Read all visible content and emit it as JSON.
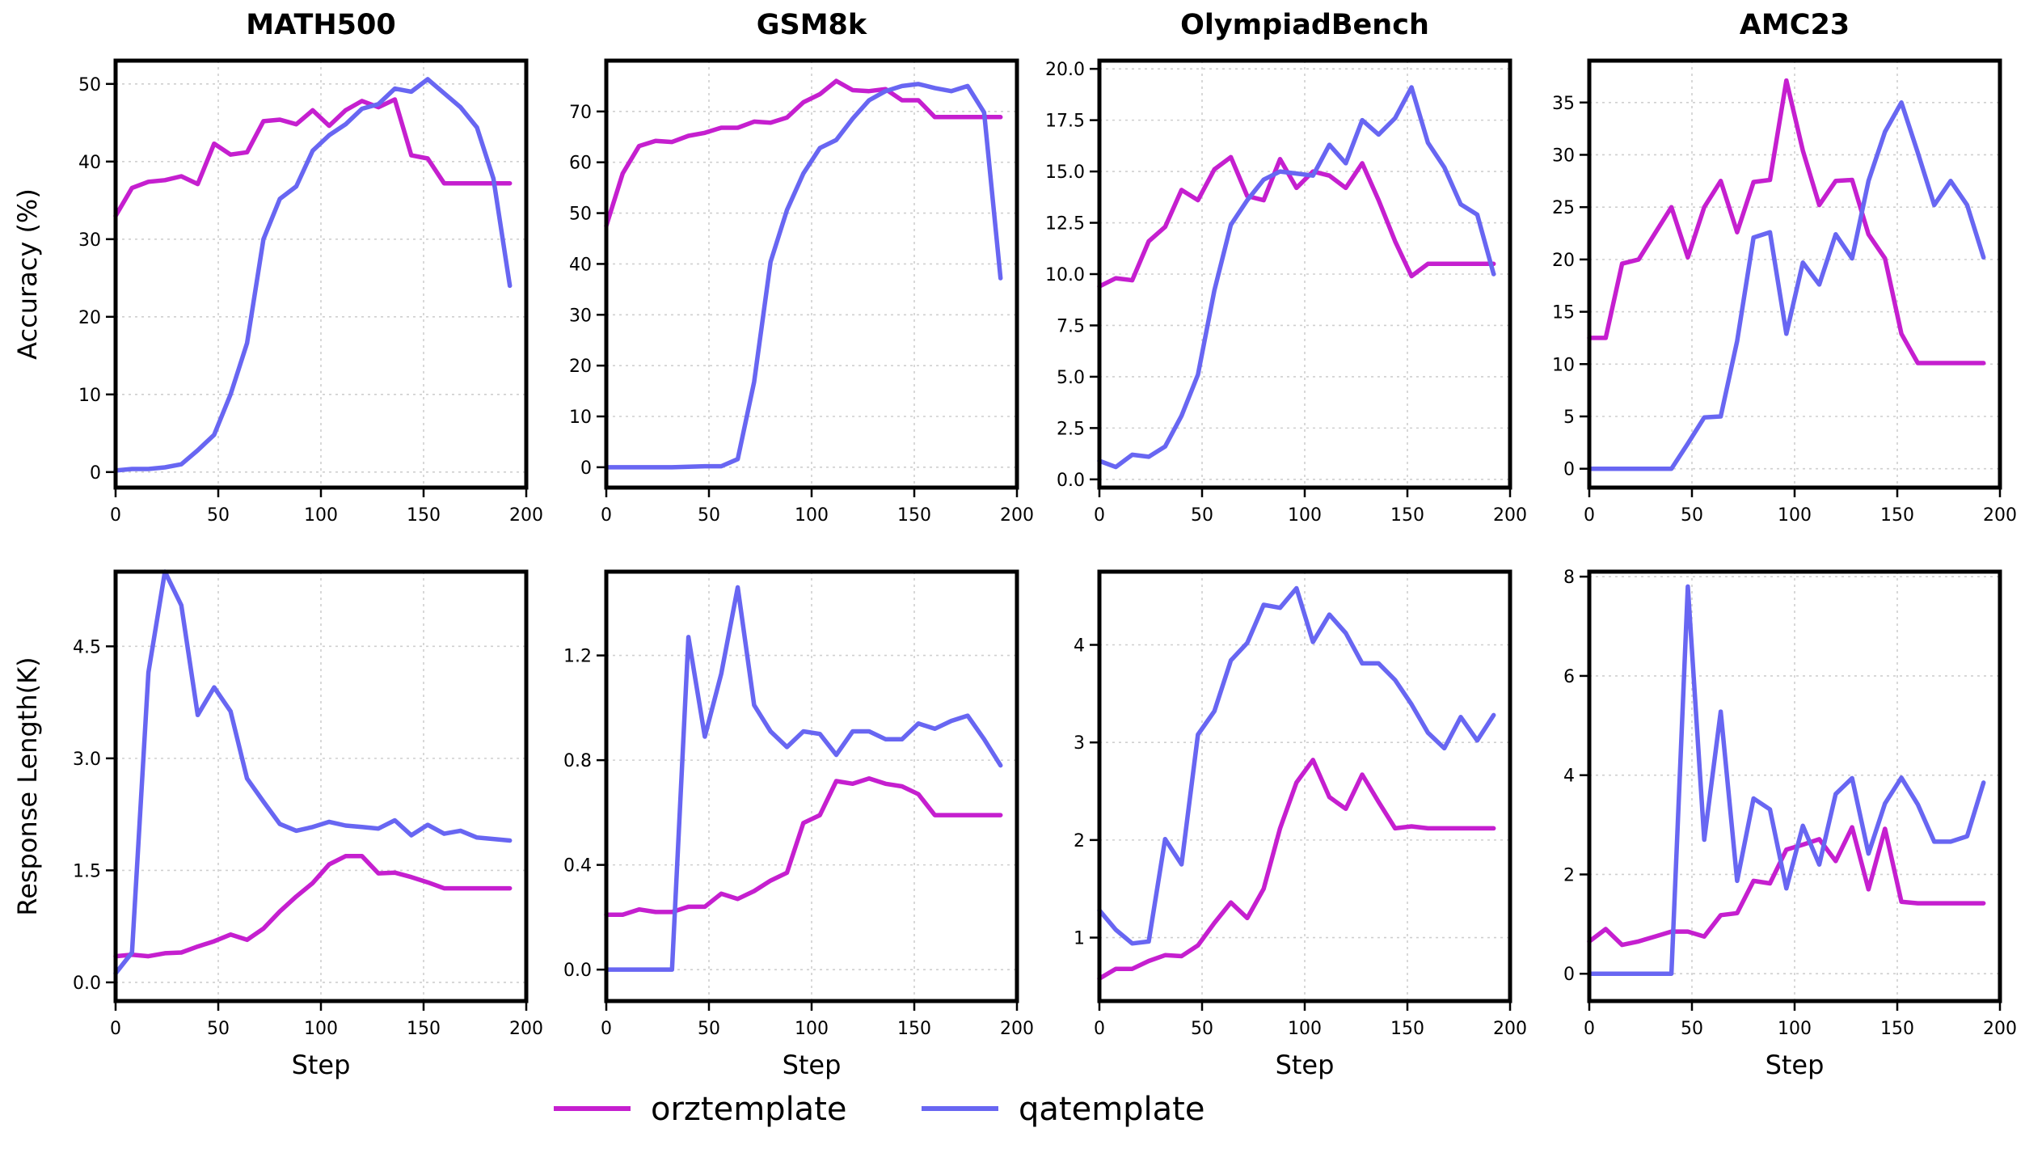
{
  "legend": {
    "items": [
      {
        "name": "orztemplate",
        "color": "#c51fcf"
      },
      {
        "name": "qatemplate",
        "color": "#6866f2"
      }
    ]
  },
  "chart_data": [
    {
      "type": "line",
      "title": "MATH500",
      "xlabel": "",
      "ylabel": "Accuracy (%)",
      "xlim": [
        0,
        200
      ],
      "ylim": [
        -2,
        53
      ],
      "xticks": [
        0,
        50,
        100,
        150,
        200
      ],
      "yticks": [
        0,
        10,
        20,
        30,
        40,
        50
      ],
      "ytick_labels": [
        "0",
        "10",
        "20",
        "30",
        "40",
        "50"
      ],
      "x": [
        0,
        8,
        16,
        24,
        32,
        40,
        48,
        56,
        64,
        72,
        80,
        88,
        96,
        104,
        112,
        120,
        128,
        136,
        144,
        152,
        160,
        168,
        176,
        184,
        192
      ],
      "series": [
        {
          "name": "orztemplate",
          "color": "#c51fcf",
          "values": [
            33,
            36.6,
            37.4,
            37.6,
            38.1,
            37.1,
            42.3,
            40.9,
            41.2,
            45.2,
            45.4,
            44.8,
            46.6,
            44.6,
            46.6,
            47.8,
            47,
            48,
            40.8,
            40.4,
            37.2,
            37.2,
            37.2,
            37.2,
            37.2
          ]
        },
        {
          "name": "qatemplate",
          "color": "#6866f2",
          "values": [
            0.2,
            0.4,
            0.4,
            0.6,
            1,
            2.8,
            4.8,
            10,
            16.6,
            30,
            35.2,
            36.8,
            41.4,
            43.4,
            44.8,
            46.8,
            47.4,
            49.4,
            49,
            50.6,
            48.8,
            47,
            44.4,
            37.8,
            24
          ]
        }
      ]
    },
    {
      "type": "line",
      "title": "GSM8k",
      "xlabel": "",
      "ylabel": "",
      "xlim": [
        0,
        200
      ],
      "ylim": [
        -4,
        80
      ],
      "xticks": [
        0,
        50,
        100,
        150,
        200
      ],
      "yticks": [
        0,
        10,
        20,
        30,
        40,
        50,
        60,
        70
      ],
      "ytick_labels": [
        "0",
        "10",
        "20",
        "30",
        "40",
        "50",
        "60",
        "70"
      ],
      "x": [
        0,
        8,
        16,
        24,
        32,
        40,
        48,
        56,
        64,
        72,
        80,
        88,
        96,
        104,
        112,
        120,
        128,
        136,
        144,
        152,
        160,
        168,
        176,
        184,
        192
      ],
      "series": [
        {
          "name": "orztemplate",
          "color": "#c51fcf",
          "values": [
            47.5,
            57.8,
            63.2,
            64.2,
            64,
            65.2,
            65.8,
            66.8,
            66.8,
            68,
            67.8,
            68.8,
            71.8,
            73.4,
            76,
            74.2,
            74,
            74.4,
            72.2,
            72.2,
            68.9,
            68.9,
            68.9,
            68.9,
            68.9
          ]
        },
        {
          "name": "qatemplate",
          "color": "#6866f2",
          "values": [
            0,
            0,
            0,
            0,
            0,
            0.1,
            0.2,
            0.2,
            1.6,
            16.8,
            40.4,
            50.6,
            57.8,
            62.8,
            64.4,
            68.6,
            72.2,
            74,
            75,
            75.4,
            74.6,
            74,
            75,
            69.8,
            37.2
          ]
        }
      ]
    },
    {
      "type": "line",
      "title": "OlympiadBench",
      "xlabel": "",
      "ylabel": "",
      "xlim": [
        0,
        200
      ],
      "ylim": [
        -0.4,
        20.4
      ],
      "xticks": [
        0,
        50,
        100,
        150,
        200
      ],
      "yticks": [
        0,
        2.5,
        5,
        7.5,
        10,
        12.5,
        15,
        17.5,
        20
      ],
      "ytick_labels": [
        "0.0",
        "2.5",
        "5.0",
        "7.5",
        "10.0",
        "12.5",
        "15.0",
        "17.5",
        "20.0"
      ],
      "x": [
        0,
        8,
        16,
        24,
        32,
        40,
        48,
        56,
        64,
        72,
        80,
        88,
        96,
        104,
        112,
        120,
        128,
        136,
        144,
        152,
        160,
        168,
        176,
        184,
        192
      ],
      "series": [
        {
          "name": "orztemplate",
          "color": "#c51fcf",
          "values": [
            9.4,
            9.8,
            9.7,
            11.6,
            12.3,
            14.1,
            13.6,
            15.1,
            15.7,
            13.8,
            13.6,
            15.6,
            14.2,
            15,
            14.8,
            14.2,
            15.4,
            13.6,
            11.6,
            9.9,
            10.5,
            10.5,
            10.5,
            10.5,
            10.5
          ]
        },
        {
          "name": "qatemplate",
          "color": "#6866f2",
          "values": [
            0.9,
            0.6,
            1.2,
            1.1,
            1.6,
            3.1,
            5.1,
            9.2,
            12.4,
            13.6,
            14.6,
            15,
            14.9,
            14.8,
            16.3,
            15.4,
            17.5,
            16.8,
            17.6,
            19.1,
            16.4,
            15.2,
            13.4,
            12.9,
            10
          ]
        }
      ]
    },
    {
      "type": "line",
      "title": "AMC23",
      "xlabel": "",
      "ylabel": "",
      "xlim": [
        0,
        200
      ],
      "ylim": [
        -1.8,
        39
      ],
      "xticks": [
        0,
        50,
        100,
        150,
        200
      ],
      "yticks": [
        0,
        5,
        10,
        15,
        20,
        25,
        30,
        35
      ],
      "ytick_labels": [
        "0",
        "5",
        "10",
        "15",
        "20",
        "25",
        "30",
        "35"
      ],
      "x": [
        0,
        8,
        16,
        24,
        32,
        40,
        48,
        56,
        64,
        72,
        80,
        88,
        96,
        104,
        112,
        120,
        128,
        136,
        144,
        152,
        160,
        168,
        176,
        184,
        192
      ],
      "series": [
        {
          "name": "orztemplate",
          "color": "#c51fcf",
          "values": [
            12.5,
            12.5,
            19.6,
            20,
            22.5,
            25,
            20.2,
            25,
            27.5,
            22.6,
            27.4,
            27.6,
            37.1,
            30.4,
            25.2,
            27.5,
            27.6,
            22.4,
            20.1,
            12.9,
            10.1,
            10.1,
            10.1,
            10.1,
            10.1
          ]
        },
        {
          "name": "qatemplate",
          "color": "#6866f2",
          "values": [
            0,
            0,
            0,
            0,
            0,
            0,
            2.4,
            4.9,
            5,
            12.2,
            22.1,
            22.6,
            12.9,
            19.7,
            17.6,
            22.4,
            20.1,
            27.5,
            32.2,
            35,
            30.2,
            25.2,
            27.5,
            25.2,
            20.2
          ]
        }
      ]
    },
    {
      "type": "line",
      "title": "",
      "xlabel": "Step",
      "ylabel": "Response Length(K)",
      "xlim": [
        0,
        200
      ],
      "ylim": [
        -0.25,
        5.5
      ],
      "xticks": [
        0,
        50,
        100,
        150,
        200
      ],
      "yticks": [
        0,
        1.5,
        3,
        4.5
      ],
      "ytick_labels": [
        "0.0",
        "1.5",
        "3.0",
        "4.5"
      ],
      "x": [
        0,
        8,
        16,
        24,
        32,
        40,
        48,
        56,
        64,
        72,
        80,
        88,
        96,
        104,
        112,
        120,
        128,
        136,
        144,
        152,
        160,
        168,
        176,
        184,
        192
      ],
      "series": [
        {
          "name": "orztemplate",
          "color": "#c51fcf",
          "values": [
            0.35,
            0.37,
            0.35,
            0.39,
            0.4,
            0.48,
            0.55,
            0.64,
            0.57,
            0.72,
            0.95,
            1.15,
            1.33,
            1.58,
            1.69,
            1.69,
            1.46,
            1.47,
            1.41,
            1.34,
            1.26,
            1.26,
            1.26,
            1.26,
            1.26
          ]
        },
        {
          "name": "qatemplate",
          "color": "#6866f2",
          "values": [
            0.12,
            0.4,
            4.15,
            5.5,
            5.05,
            3.58,
            3.95,
            3.63,
            2.73,
            2.42,
            2.12,
            2.03,
            2.08,
            2.15,
            2.1,
            2.08,
            2.06,
            2.17,
            1.97,
            2.11,
            1.99,
            2.03,
            1.94,
            1.92,
            1.9
          ]
        }
      ]
    },
    {
      "type": "line",
      "title": "",
      "xlabel": "Step",
      "ylabel": "",
      "xlim": [
        0,
        200
      ],
      "ylim": [
        -0.12,
        1.52
      ],
      "xticks": [
        0,
        50,
        100,
        150,
        200
      ],
      "yticks": [
        0,
        0.4,
        0.8,
        1.2
      ],
      "ytick_labels": [
        "0.0",
        "0.4",
        "0.8",
        "1.2"
      ],
      "x": [
        0,
        8,
        16,
        24,
        32,
        40,
        48,
        56,
        64,
        72,
        80,
        88,
        96,
        104,
        112,
        120,
        128,
        136,
        144,
        152,
        160,
        168,
        176,
        184,
        192
      ],
      "series": [
        {
          "name": "orztemplate",
          "color": "#c51fcf",
          "values": [
            0.21,
            0.21,
            0.23,
            0.22,
            0.22,
            0.24,
            0.24,
            0.29,
            0.27,
            0.3,
            0.34,
            0.37,
            0.56,
            0.59,
            0.72,
            0.71,
            0.73,
            0.71,
            0.7,
            0.67,
            0.59,
            0.59,
            0.59,
            0.59,
            0.59
          ]
        },
        {
          "name": "qatemplate",
          "color": "#6866f2",
          "values": [
            0,
            0,
            0,
            0,
            0,
            1.27,
            0.89,
            1.13,
            1.46,
            1.01,
            0.91,
            0.85,
            0.91,
            0.9,
            0.82,
            0.91,
            0.91,
            0.88,
            0.88,
            0.94,
            0.92,
            0.95,
            0.97,
            0.88,
            0.78
          ]
        }
      ]
    },
    {
      "type": "line",
      "title": "",
      "xlabel": "Step",
      "ylabel": "",
      "xlim": [
        0,
        200
      ],
      "ylim": [
        0.35,
        4.75
      ],
      "xticks": [
        0,
        50,
        100,
        150,
        200
      ],
      "yticks": [
        1,
        2,
        3,
        4
      ],
      "ytick_labels": [
        "1",
        "2",
        "3",
        "4"
      ],
      "x": [
        0,
        8,
        16,
        24,
        32,
        40,
        48,
        56,
        64,
        72,
        80,
        88,
        96,
        104,
        112,
        120,
        128,
        136,
        144,
        152,
        160,
        168,
        176,
        184,
        192
      ],
      "series": [
        {
          "name": "orztemplate",
          "color": "#c51fcf",
          "values": [
            0.58,
            0.68,
            0.68,
            0.76,
            0.82,
            0.81,
            0.92,
            1.15,
            1.36,
            1.2,
            1.5,
            2.12,
            2.59,
            2.82,
            2.44,
            2.32,
            2.67,
            2.39,
            2.12,
            2.14,
            2.12,
            2.12,
            2.12,
            2.12,
            2.12
          ]
        },
        {
          "name": "qatemplate",
          "color": "#6866f2",
          "values": [
            1.28,
            1.08,
            0.94,
            0.96,
            2.01,
            1.75,
            3.08,
            3.32,
            3.84,
            4.02,
            4.41,
            4.38,
            4.58,
            4.03,
            4.31,
            4.12,
            3.81,
            3.81,
            3.64,
            3.39,
            3.1,
            2.94,
            3.26,
            3.02,
            3.28
          ]
        }
      ]
    },
    {
      "type": "line",
      "title": "",
      "xlabel": "Step",
      "ylabel": "",
      "xlim": [
        0,
        200
      ],
      "ylim": [
        -0.55,
        8.1
      ],
      "xticks": [
        0,
        50,
        100,
        150,
        200
      ],
      "yticks": [
        0,
        2,
        4,
        6,
        8
      ],
      "ytick_labels": [
        "0",
        "2",
        "4",
        "6",
        "8"
      ],
      "x": [
        0,
        8,
        16,
        24,
        32,
        40,
        48,
        56,
        64,
        72,
        80,
        88,
        96,
        104,
        112,
        120,
        128,
        136,
        144,
        152,
        160,
        168,
        176,
        184,
        192
      ],
      "series": [
        {
          "name": "orztemplate",
          "color": "#c51fcf",
          "values": [
            0.65,
            0.9,
            0.58,
            0.65,
            0.75,
            0.85,
            0.85,
            0.75,
            1.18,
            1.22,
            1.87,
            1.82,
            2.5,
            2.6,
            2.71,
            2.27,
            2.95,
            1.7,
            2.92,
            1.45,
            1.42,
            1.42,
            1.42,
            1.42,
            1.42
          ]
        },
        {
          "name": "qatemplate",
          "color": "#6866f2",
          "values": [
            0,
            0,
            0,
            0,
            0,
            0,
            7.8,
            2.7,
            5.28,
            1.87,
            3.53,
            3.31,
            1.72,
            2.98,
            2.2,
            3.62,
            3.94,
            2.42,
            3.43,
            3.95,
            3.41,
            2.66,
            2.66,
            2.77,
            3.85
          ]
        }
      ]
    }
  ]
}
